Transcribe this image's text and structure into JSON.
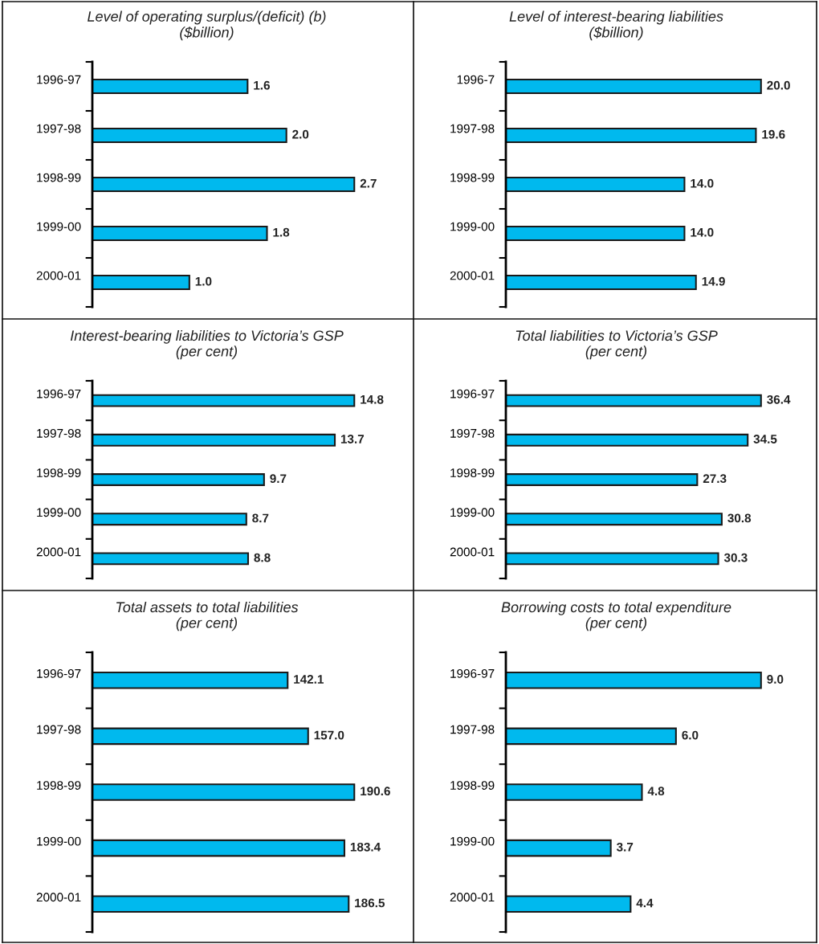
{
  "chart_data": [
    {
      "type": "bar",
      "orientation": "horizontal",
      "title": "Level of operating surplus/(deficit) (b)\n($billion)",
      "categories": [
        "1996-97",
        "1997-98",
        "1998-99",
        "1999-00",
        "2000-01"
      ],
      "values": [
        1.6,
        2.0,
        2.7,
        1.8,
        1.0
      ],
      "value_labels": [
        "1.6",
        "2.0",
        "2.7",
        "1.8",
        "1.0"
      ],
      "color": "#00b9ee",
      "tick_labels": "y",
      "grid": false,
      "legend": false
    },
    {
      "type": "bar",
      "orientation": "horizontal",
      "title": "Level of interest-bearing liabilities\n($billion)",
      "categories": [
        "1996-7",
        "1997-98",
        "1998-99",
        "1999-00",
        "2000-01"
      ],
      "values": [
        20.0,
        19.6,
        14.0,
        14.0,
        14.9
      ],
      "value_labels": [
        "20.0",
        "19.6",
        "14.0",
        "14.0",
        "14.9"
      ],
      "color": "#00b9ee",
      "tick_labels": "y",
      "grid": false,
      "legend": false
    },
    {
      "type": "bar",
      "orientation": "horizontal",
      "title": "Interest-bearing liabilities to Victoria’s GSP\n(per cent)",
      "categories": [
        "1996-97",
        "1997-98",
        "1998-99",
        "1999-00",
        "2000-01"
      ],
      "values": [
        14.8,
        13.7,
        9.7,
        8.7,
        8.8
      ],
      "value_labels": [
        "14.8",
        "13.7",
        "9.7",
        "8.7",
        "8.8"
      ],
      "color": "#00b9ee",
      "tick_labels": "y",
      "grid": false,
      "legend": false
    },
    {
      "type": "bar",
      "orientation": "horizontal",
      "title": "Total liabilities to Victoria’s GSP\n(per cent)",
      "categories": [
        "1996-97",
        "1997-98",
        "1998-99",
        "1999-00",
        "2000-01"
      ],
      "values": [
        36.4,
        34.5,
        27.3,
        30.8,
        30.3
      ],
      "value_labels": [
        "36.4",
        "34.5",
        "27.3",
        "30.8",
        "30.3"
      ],
      "color": "#00b9ee",
      "tick_labels": "y",
      "grid": false,
      "legend": false
    },
    {
      "type": "bar",
      "orientation": "horizontal",
      "title": "Total assets to total liabilities\n(per cent)",
      "categories": [
        "1996-97",
        "1997-98",
        "1998-99",
        "1999-00",
        "2000-01"
      ],
      "values": [
        142.1,
        157.0,
        190.6,
        183.4,
        186.5
      ],
      "value_labels": [
        "142.1",
        "157.0",
        "190.6",
        "183.4",
        "186.5"
      ],
      "color": "#00b9ee",
      "tick_labels": "y",
      "grid": false,
      "legend": false
    },
    {
      "type": "bar",
      "orientation": "horizontal",
      "title": "Borrowing costs to total expenditure\n(per cent)",
      "categories": [
        "1996-97",
        "1997-98",
        "1998-99",
        "1999-00",
        "2000-01"
      ],
      "values": [
        9.0,
        6.0,
        4.8,
        3.7,
        4.4
      ],
      "value_labels": [
        "9.0",
        "6.0",
        "4.8",
        "3.7",
        "4.4"
      ],
      "color": "#00b9ee",
      "tick_labels": "y",
      "grid": false,
      "legend": false
    }
  ]
}
